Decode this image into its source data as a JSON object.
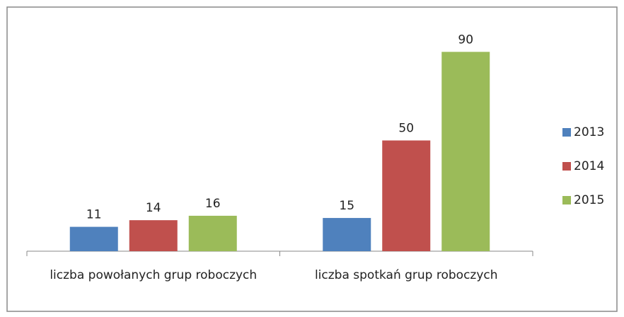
{
  "chart_data": {
    "type": "bar",
    "categories": [
      "liczba powołanych grup roboczych",
      "liczba spotkań grup roboczych"
    ],
    "series": [
      {
        "name": "2013",
        "color": "#4f81bd",
        "values": [
          11,
          15
        ]
      },
      {
        "name": "2014",
        "color": "#c0504d",
        "values": [
          14,
          50
        ]
      },
      {
        "name": "2015",
        "color": "#9bbb59",
        "values": [
          16,
          90
        ]
      }
    ],
    "ylim": [
      0,
      100
    ],
    "legend": "right"
  }
}
